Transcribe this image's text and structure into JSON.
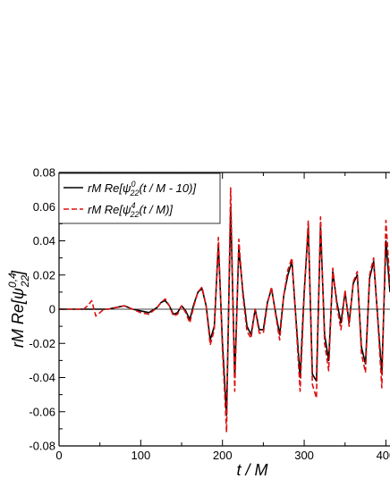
{
  "chart_data": {
    "type": "line",
    "xlabel": "t / M",
    "ylabel": {
      "prefix": "rM Re[ψ",
      "sup": "0,4",
      "sub": "22",
      "suffix": "]"
    },
    "xlim": [
      0,
      405
    ],
    "ylim": [
      -0.08,
      0.08
    ],
    "x_ticks": [
      "0",
      "100",
      "200",
      "300",
      "400"
    ],
    "y_ticks": [
      "-0.08",
      "-0.06",
      "-0.04",
      "-0.02",
      "0",
      "0.02",
      "0.04",
      "0.06",
      "0.08"
    ],
    "legend_position": "top-left",
    "series": [
      {
        "legend": {
          "prefix": "rM Re[ψ",
          "sup": "0",
          "sub": "22",
          "suffix": "(t / M - 10)]"
        },
        "color": "#000000",
        "dash": "solid",
        "x": [
          0,
          20,
          40,
          60,
          70,
          80,
          90,
          100,
          110,
          120,
          125,
          130,
          135,
          140,
          145,
          150,
          155,
          160,
          165,
          170,
          175,
          180,
          185,
          190,
          195,
          200,
          205,
          210,
          215,
          220,
          225,
          230,
          235,
          240,
          245,
          250,
          255,
          260,
          265,
          270,
          275,
          280,
          285,
          290,
          295,
          300,
          305,
          310,
          315,
          320,
          325,
          330,
          335,
          340,
          345,
          350,
          355,
          360,
          365,
          370,
          375,
          380,
          385,
          390,
          395,
          400,
          405
        ],
        "y": [
          0,
          0,
          0,
          0,
          0.001,
          0.002,
          0,
          -0.001,
          -0.002,
          0.001,
          0.004,
          0.005,
          0.002,
          -0.003,
          -0.002,
          0.002,
          -0.001,
          -0.006,
          0.003,
          0.01,
          0.012,
          0.002,
          -0.018,
          -0.01,
          0.038,
          -0.02,
          -0.062,
          0.06,
          -0.04,
          0.036,
          0.01,
          -0.01,
          -0.015,
          0,
          -0.012,
          -0.012,
          0.004,
          0.012,
          -0.002,
          -0.015,
          0.008,
          0.02,
          0.028,
          -0.006,
          -0.04,
          0.01,
          0.048,
          -0.038,
          -0.042,
          0.048,
          -0.015,
          -0.03,
          0.022,
          0.004,
          -0.008,
          0.01,
          -0.008,
          0.015,
          0.02,
          -0.022,
          -0.032,
          0.018,
          0.028,
          -0.005,
          -0.038,
          0.04,
          0.01
        ]
      },
      {
        "legend": {
          "prefix": "rM Re[ψ",
          "sup": "4",
          "sub": "22",
          "suffix": "(t / M)]"
        },
        "color": "#dd1111",
        "dash": "dashed",
        "x": [
          0,
          20,
          30,
          35,
          40,
          45,
          50,
          55,
          60,
          70,
          80,
          90,
          100,
          110,
          120,
          125,
          130,
          135,
          140,
          145,
          150,
          155,
          160,
          165,
          170,
          175,
          180,
          185,
          190,
          195,
          200,
          205,
          210,
          215,
          220,
          225,
          230,
          235,
          240,
          245,
          250,
          255,
          260,
          265,
          270,
          275,
          280,
          285,
          290,
          295,
          300,
          305,
          310,
          315,
          320,
          325,
          330,
          335,
          340,
          345,
          350,
          355,
          360,
          365,
          370,
          375,
          380,
          385,
          390,
          395,
          400,
          405
        ],
        "y": [
          0,
          0,
          0,
          0.002,
          0.005,
          -0.004,
          -0.002,
          0,
          0,
          0.001,
          0.002,
          0,
          -0.002,
          -0.003,
          0.001,
          0.004,
          0.006,
          0.002,
          -0.004,
          -0.003,
          0.002,
          -0.002,
          -0.008,
          0.002,
          0.01,
          0.013,
          0.002,
          -0.021,
          -0.012,
          0.042,
          -0.024,
          -0.072,
          0.071,
          -0.048,
          0.041,
          0.008,
          -0.013,
          -0.017,
          0,
          -0.014,
          -0.014,
          0.003,
          0.013,
          -0.003,
          -0.018,
          0.008,
          0.023,
          0.03,
          -0.008,
          -0.048,
          0.008,
          0.052,
          -0.044,
          -0.052,
          0.054,
          -0.02,
          -0.036,
          0.024,
          0.002,
          -0.012,
          0.011,
          -0.01,
          0.016,
          0.022,
          -0.026,
          -0.037,
          0.02,
          0.03,
          -0.006,
          -0.046,
          0.052,
          0.014
        ]
      }
    ]
  }
}
